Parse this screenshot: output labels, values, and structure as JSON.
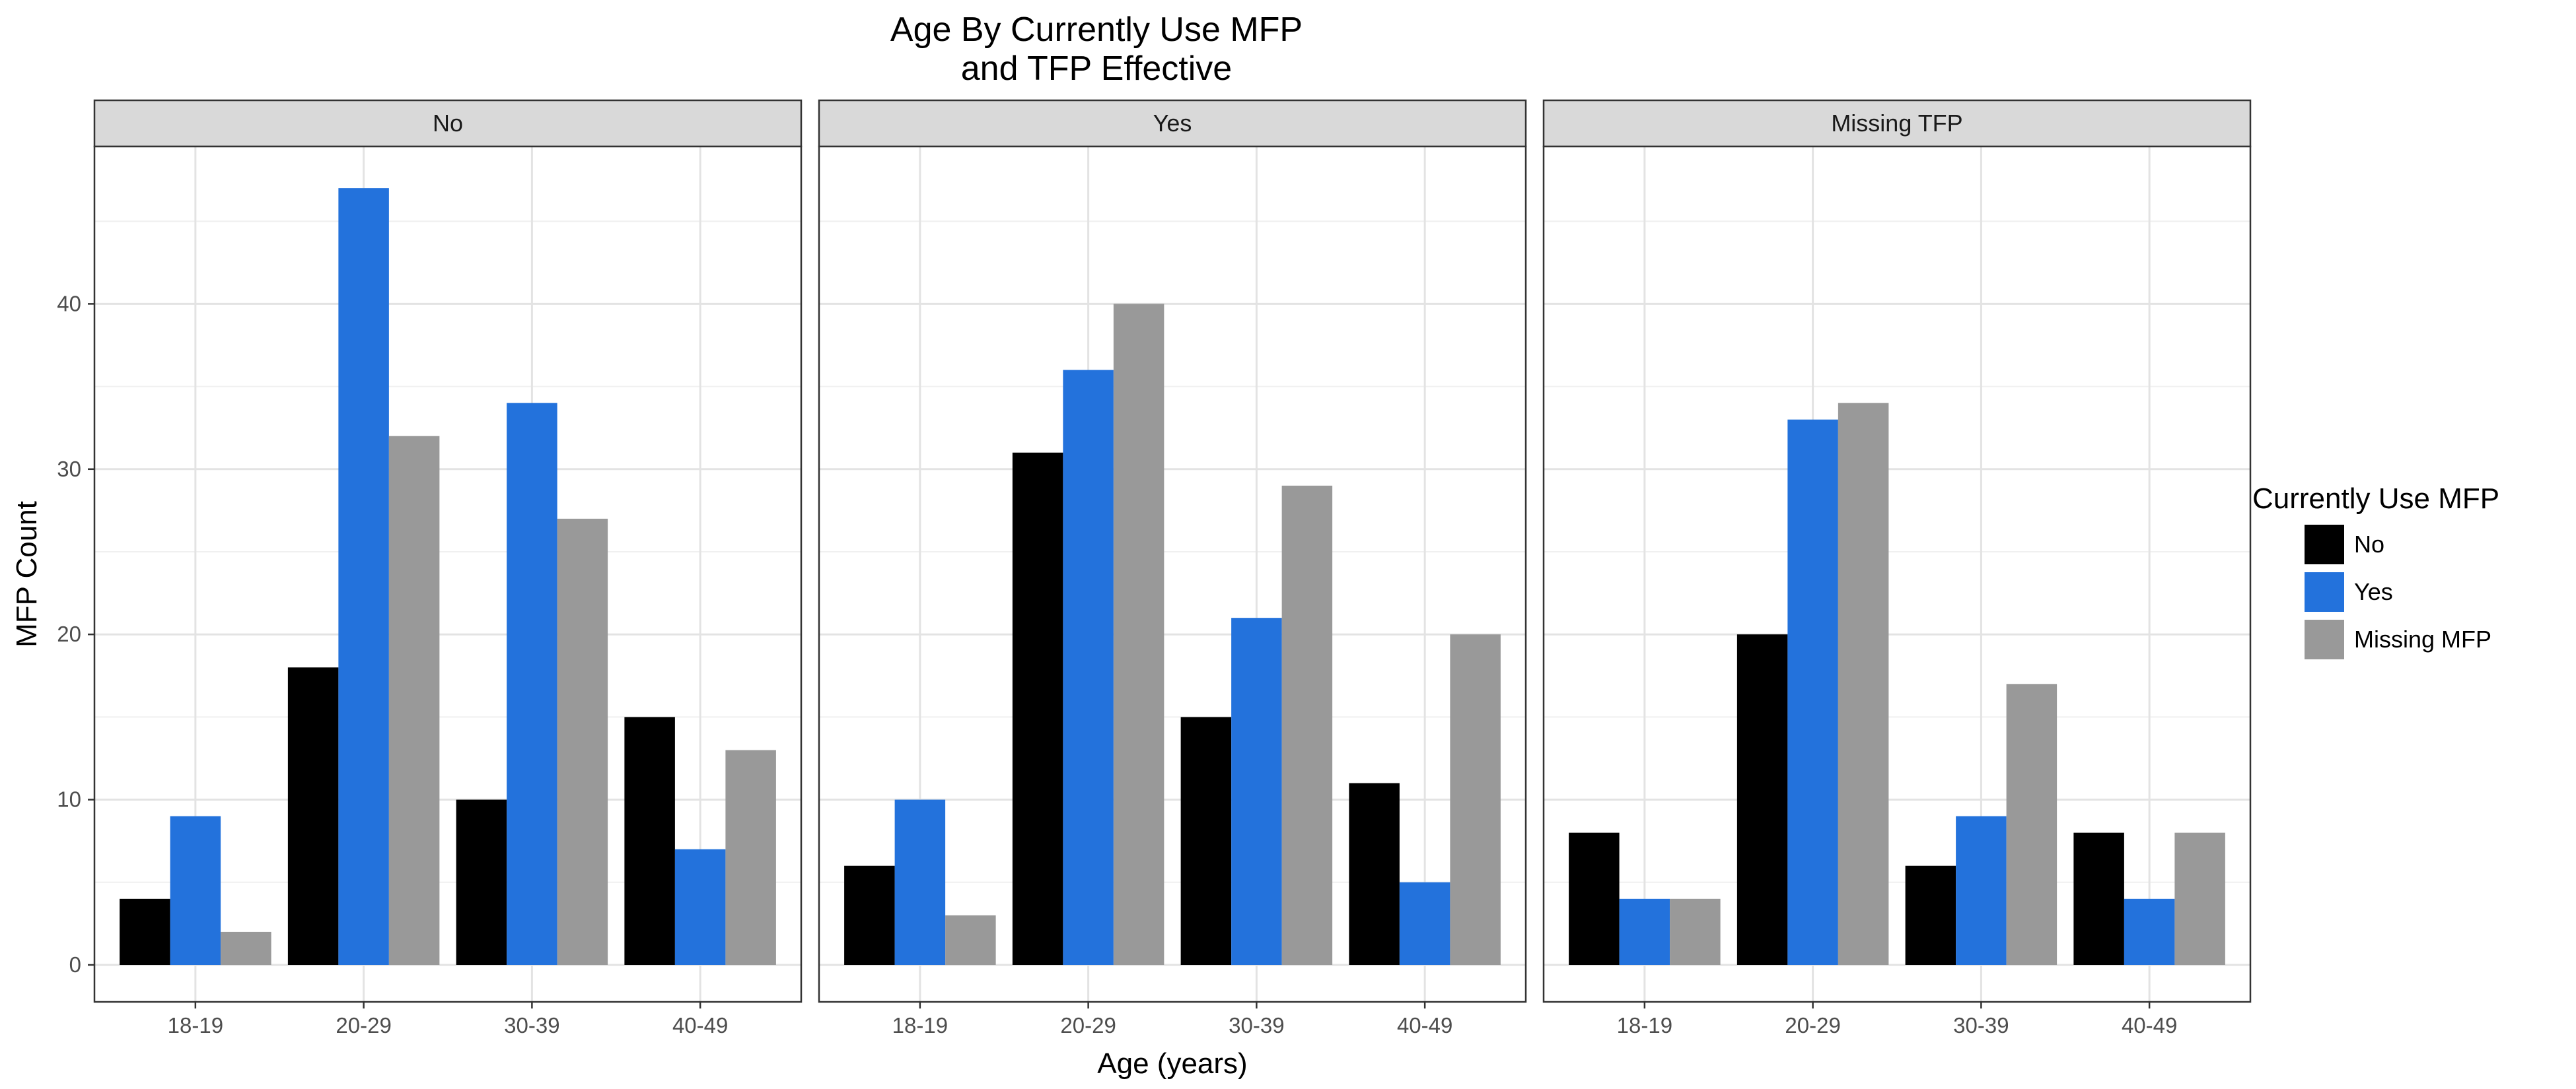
{
  "chart_data": {
    "type": "bar",
    "title_lines": [
      "Age By Currently Use MFP",
      "and TFP Effective"
    ],
    "xlabel": "Age (years)",
    "ylabel": "MFP Count",
    "ylim": [
      0,
      50
    ],
    "yticks": [
      0,
      10,
      20,
      30,
      40
    ],
    "grid": true,
    "categories": [
      "18-19",
      "20-29",
      "30-39",
      "40-49"
    ],
    "legend": {
      "title": "Currently Use MFP",
      "placement": "right",
      "entries": [
        {
          "label": "No",
          "color": "#000000"
        },
        {
          "label": "Yes",
          "color": "#2372DC"
        },
        {
          "label": "Missing MFP",
          "color": "#999999"
        }
      ]
    },
    "panels": [
      {
        "label": "No",
        "series": [
          {
            "name": "No",
            "values": [
              4,
              18,
              10,
              15
            ]
          },
          {
            "name": "Yes",
            "values": [
              9,
              47,
              34,
              7
            ]
          },
          {
            "name": "Missing MFP",
            "values": [
              2,
              32,
              27,
              13
            ]
          }
        ]
      },
      {
        "label": "Yes",
        "series": [
          {
            "name": "No",
            "values": [
              6,
              31,
              15,
              11
            ]
          },
          {
            "name": "Yes",
            "values": [
              10,
              36,
              21,
              5
            ]
          },
          {
            "name": "Missing MFP",
            "values": [
              3,
              40,
              29,
              20
            ]
          }
        ]
      },
      {
        "label": "Missing TFP",
        "series": [
          {
            "name": "No",
            "values": [
              8,
              20,
              6,
              8
            ]
          },
          {
            "name": "Yes",
            "values": [
              4,
              33,
              9,
              4
            ]
          },
          {
            "name": "Missing MFP",
            "values": [
              4,
              34,
              17,
              8
            ]
          }
        ]
      }
    ]
  }
}
